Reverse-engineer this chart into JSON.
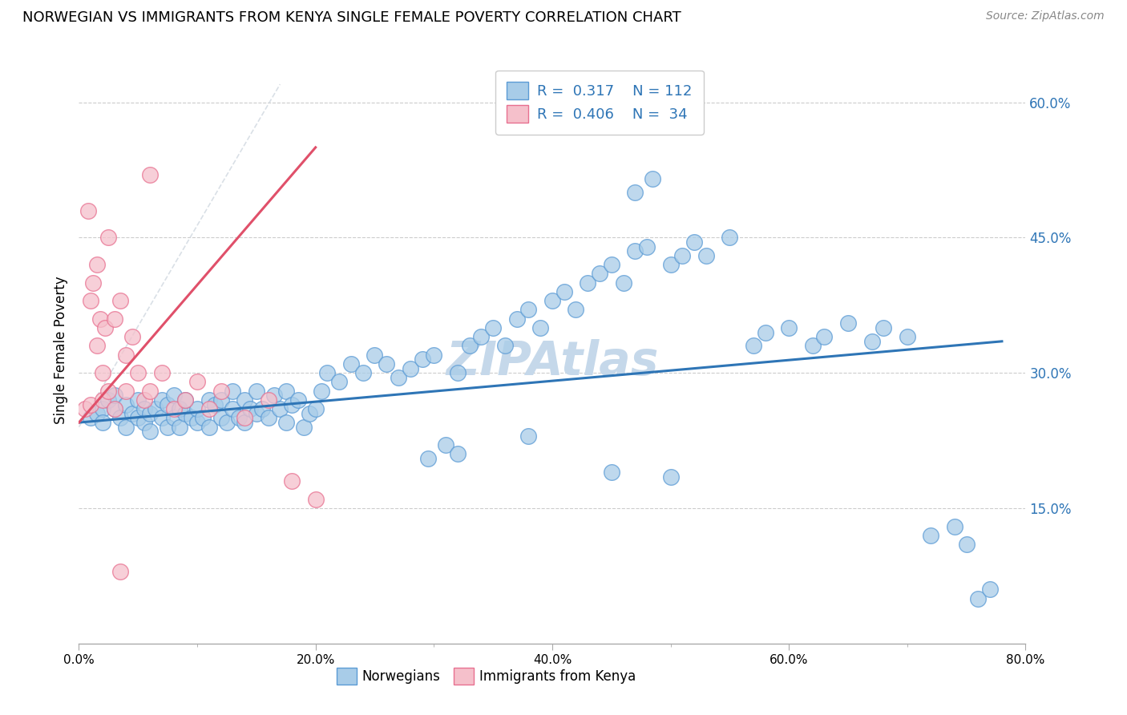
{
  "title": "NORWEGIAN VS IMMIGRANTS FROM KENYA SINGLE FEMALE POVERTY CORRELATION CHART",
  "source": "Source: ZipAtlas.com",
  "ylabel": "Single Female Poverty",
  "xmin": 0.0,
  "xmax": 80.0,
  "ymin": 0.0,
  "ymax": 65.0,
  "xlabel_tick_vals": [
    0.0,
    20.0,
    40.0,
    60.0,
    80.0
  ],
  "xlabel_ticks": [
    "0.0%",
    "20.0%",
    "40.0%",
    "60.0%",
    "80.0%"
  ],
  "ylabel_tick_vals": [
    15.0,
    30.0,
    45.0,
    60.0
  ],
  "ylabel_ticks": [
    "15.0%",
    "30.0%",
    "45.0%",
    "60.0%"
  ],
  "R_norwegian": 0.317,
  "N_norwegian": 112,
  "R_kenya": 0.406,
  "N_kenya": 34,
  "blue_scatter_color": "#a8cce8",
  "blue_scatter_edge": "#5b9bd5",
  "pink_scatter_color": "#f5c0cb",
  "pink_scatter_edge": "#e87090",
  "trend_blue": "#2e75b6",
  "trend_pink": "#e0506a",
  "yaxis_label_color": "#2e75b6",
  "watermark_color": "#c5d8ea",
  "diag_line_color": "#d0d8e0",
  "norwegians_x": [
    1.0,
    1.5,
    2.0,
    2.0,
    2.5,
    3.0,
    3.0,
    3.5,
    4.0,
    4.0,
    4.5,
    5.0,
    5.0,
    5.5,
    5.5,
    6.0,
    6.0,
    6.5,
    7.0,
    7.0,
    7.5,
    7.5,
    8.0,
    8.0,
    8.5,
    8.5,
    9.0,
    9.0,
    9.5,
    10.0,
    10.0,
    10.5,
    11.0,
    11.0,
    11.5,
    12.0,
    12.0,
    12.5,
    13.0,
    13.0,
    13.5,
    14.0,
    14.0,
    14.5,
    15.0,
    15.0,
    15.5,
    16.0,
    16.5,
    17.0,
    17.5,
    17.5,
    18.0,
    18.5,
    19.0,
    19.5,
    20.0,
    20.5,
    21.0,
    22.0,
    23.0,
    24.0,
    25.0,
    26.0,
    27.0,
    28.0,
    29.0,
    30.0,
    32.0,
    33.0,
    34.0,
    35.0,
    36.0,
    37.0,
    38.0,
    39.0,
    40.0,
    41.0,
    42.0,
    43.0,
    44.0,
    45.0,
    46.0,
    47.0,
    48.0,
    50.0,
    51.0,
    52.0,
    53.0,
    55.0,
    57.0,
    58.0,
    60.0,
    62.0,
    63.0,
    65.0,
    67.0,
    68.0,
    70.0,
    72.0,
    74.0,
    75.0,
    76.0,
    77.0,
    47.0,
    48.5,
    31.0,
    32.0,
    29.5,
    38.0,
    45.0,
    50.0
  ],
  "norwegians_y": [
    25.0,
    25.5,
    26.0,
    24.5,
    27.0,
    26.0,
    27.5,
    25.0,
    26.5,
    24.0,
    25.5,
    27.0,
    25.0,
    26.0,
    24.5,
    25.5,
    23.5,
    26.0,
    25.0,
    27.0,
    24.0,
    26.5,
    25.0,
    27.5,
    24.0,
    26.0,
    25.5,
    27.0,
    25.0,
    24.5,
    26.0,
    25.0,
    27.0,
    24.0,
    26.5,
    25.0,
    27.0,
    24.5,
    26.0,
    28.0,
    25.0,
    27.0,
    24.5,
    26.0,
    25.5,
    28.0,
    26.0,
    25.0,
    27.5,
    26.0,
    24.5,
    28.0,
    26.5,
    27.0,
    24.0,
    25.5,
    26.0,
    28.0,
    30.0,
    29.0,
    31.0,
    30.0,
    32.0,
    31.0,
    29.5,
    30.5,
    31.5,
    32.0,
    30.0,
    33.0,
    34.0,
    35.0,
    33.0,
    36.0,
    37.0,
    35.0,
    38.0,
    39.0,
    37.0,
    40.0,
    41.0,
    42.0,
    40.0,
    43.5,
    44.0,
    42.0,
    43.0,
    44.5,
    43.0,
    45.0,
    33.0,
    34.5,
    35.0,
    33.0,
    34.0,
    35.5,
    33.5,
    35.0,
    34.0,
    12.0,
    13.0,
    11.0,
    5.0,
    6.0,
    50.0,
    51.5,
    22.0,
    21.0,
    20.5,
    23.0,
    19.0,
    18.5
  ],
  "kenya_x": [
    0.5,
    0.8,
    1.0,
    1.0,
    1.2,
    1.5,
    1.5,
    1.8,
    2.0,
    2.0,
    2.2,
    2.5,
    2.5,
    3.0,
    3.0,
    3.5,
    4.0,
    4.0,
    4.5,
    5.0,
    5.5,
    6.0,
    7.0,
    8.0,
    9.0,
    10.0,
    11.0,
    12.0,
    14.0,
    16.0,
    18.0,
    20.0,
    6.0,
    3.5
  ],
  "kenya_y": [
    26.0,
    48.0,
    26.5,
    38.0,
    40.0,
    33.0,
    42.0,
    36.0,
    27.0,
    30.0,
    35.0,
    28.0,
    45.0,
    26.0,
    36.0,
    38.0,
    28.0,
    32.0,
    34.0,
    30.0,
    27.0,
    28.0,
    30.0,
    26.0,
    27.0,
    29.0,
    26.0,
    28.0,
    25.0,
    27.0,
    18.0,
    16.0,
    52.0,
    8.0
  ],
  "blue_trend_x0": 0.0,
  "blue_trend_y0": 24.5,
  "blue_trend_x1": 78.0,
  "blue_trend_y1": 33.5,
  "pink_trend_x0": 0.0,
  "pink_trend_y0": 24.5,
  "pink_trend_x1": 20.0,
  "pink_trend_y1": 55.0
}
